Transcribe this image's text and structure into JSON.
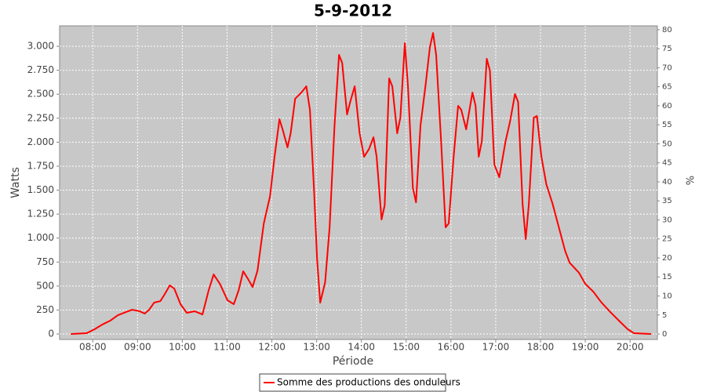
{
  "chart_data": {
    "type": "line",
    "title": "5-9-2012",
    "xlabel": "Période",
    "ylabel": "Watts",
    "y2label": "%",
    "x": [
      7.51,
      7.86,
      8.04,
      8.21,
      8.39,
      8.56,
      8.74,
      8.88,
      9.05,
      9.16,
      9.26,
      9.37,
      9.51,
      9.61,
      9.72,
      9.82,
      9.96,
      10.1,
      10.28,
      10.45,
      10.59,
      10.7,
      10.84,
      11.01,
      11.15,
      11.26,
      11.36,
      11.47,
      11.57,
      11.68,
      11.82,
      11.96,
      12.06,
      12.17,
      12.24,
      12.35,
      12.42,
      12.52,
      12.66,
      12.77,
      12.85,
      12.94,
      13.01,
      13.08,
      13.19,
      13.29,
      13.4,
      13.5,
      13.57,
      13.68,
      13.75,
      13.85,
      13.96,
      14.06,
      14.17,
      14.27,
      14.34,
      14.45,
      14.52,
      14.62,
      14.69,
      14.8,
      14.87,
      14.97,
      15.04,
      15.15,
      15.22,
      15.32,
      15.43,
      15.53,
      15.6,
      15.67,
      15.78,
      15.88,
      15.95,
      16.06,
      16.16,
      16.23,
      16.34,
      16.48,
      16.55,
      16.62,
      16.69,
      16.8,
      16.87,
      16.97,
      17.08,
      17.22,
      17.32,
      17.43,
      17.5,
      17.6,
      17.67,
      17.74,
      17.85,
      17.92,
      18.02,
      18.13,
      18.27,
      18.41,
      18.55,
      18.65,
      18.86,
      19.0,
      19.18,
      19.35,
      19.56,
      19.77,
      19.95,
      20.09,
      20.47
    ],
    "series": [
      {
        "name": "Somme des productions des onduleurs",
        "color": "#ff0000",
        "values": [
          0,
          8,
          49,
          98,
          139,
          196,
          229,
          253,
          237,
          213,
          253,
          327,
          343,
          417,
          507,
          474,
          311,
          221,
          237,
          204,
          458,
          621,
          523,
          352,
          311,
          458,
          654,
          572,
          490,
          662,
          1153,
          1439,
          1848,
          2240,
          2134,
          1946,
          2093,
          2453,
          2518,
          2583,
          2338,
          1521,
          785,
          327,
          540,
          1112,
          2175,
          2910,
          2829,
          2289,
          2420,
          2583,
          2093,
          1848,
          1929,
          2052,
          1848,
          1194,
          1341,
          2665,
          2583,
          2093,
          2256,
          3033,
          2583,
          1521,
          1373,
          2175,
          2583,
          2992,
          3139,
          2910,
          2011,
          1112,
          1153,
          1848,
          2379,
          2338,
          2134,
          2518,
          2379,
          1848,
          2011,
          2870,
          2747,
          1766,
          1635,
          2011,
          2216,
          2502,
          2420,
          1357,
          989,
          1357,
          2256,
          2273,
          1848,
          1562,
          1357,
          1112,
          867,
          744,
          638,
          523,
          441,
          335,
          229,
          131,
          49,
          8,
          0
        ]
      }
    ],
    "xlim": [
      7.26,
      20.61
    ],
    "xticks": [
      {
        "value": 8,
        "label": "08:00"
      },
      {
        "value": 9,
        "label": "09:00"
      },
      {
        "value": 10,
        "label": "10:00"
      },
      {
        "value": 11,
        "label": "11:00"
      },
      {
        "value": 12,
        "label": "12:00"
      },
      {
        "value": 13,
        "label": "13:00"
      },
      {
        "value": 14,
        "label": "14:00"
      },
      {
        "value": 15,
        "label": "15:00"
      },
      {
        "value": 16,
        "label": "16:00"
      },
      {
        "value": 17,
        "label": "17:00"
      },
      {
        "value": 18,
        "label": "18:00"
      },
      {
        "value": 19,
        "label": "19:00"
      },
      {
        "value": 20,
        "label": "20:00"
      }
    ],
    "ylim": [
      -57,
      3213
    ],
    "yticks": [
      0,
      250,
      500,
      750,
      {
        "value": 1000,
        "label": "1.000"
      },
      {
        "value": 1250,
        "label": "1.250"
      },
      {
        "value": 1500,
        "label": "1.500"
      },
      {
        "value": 1750,
        "label": "1.750"
      },
      {
        "value": 2000,
        "label": "2.000"
      },
      {
        "value": 2250,
        "label": "2.250"
      },
      {
        "value": 2500,
        "label": "2.500"
      },
      {
        "value": 2750,
        "label": "2.750"
      },
      {
        "value": 3000,
        "label": "3.000"
      }
    ],
    "y2lim": [
      -1.44,
      81
    ],
    "y2ticks": [
      0,
      5,
      10,
      15,
      20,
      25,
      30,
      35,
      40,
      45,
      50,
      55,
      60,
      65,
      70,
      75,
      80
    ],
    "grid": true,
    "legend": "bottom"
  }
}
